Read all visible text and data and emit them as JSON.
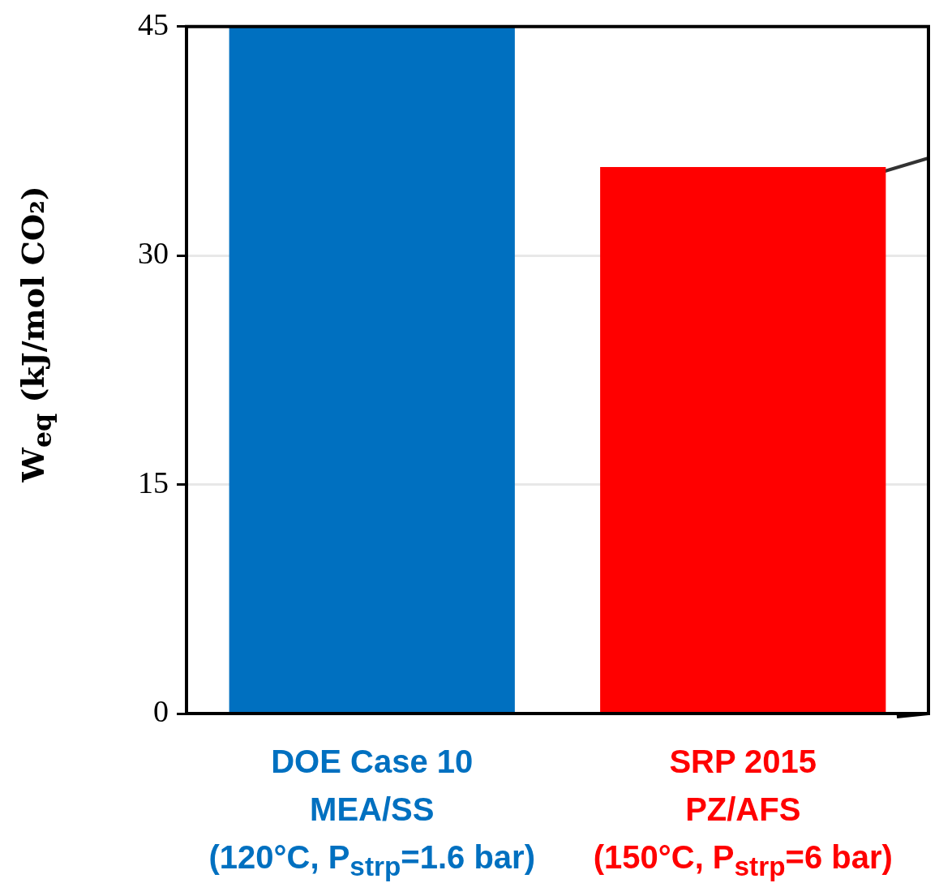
{
  "chart_data": {
    "type": "bar",
    "ylabel": "W$_{eq}$ (kJ/mol CO₂)",
    "categories": [
      "DOE Case 10\nMEA/SS\n(120°C, P$_{strp}$=1.6 bar)",
      "SRP 2015\nPZ/AFS\n(150°C, P$_{strp}$=6 bar)"
    ],
    "values": [
      45,
      35.8
    ],
    "colors": [
      "#0070c0",
      "#ff0000"
    ],
    "ylim": [
      0,
      45
    ],
    "yticks": [
      0,
      15,
      30,
      45
    ],
    "grid": "y",
    "legend": false
  }
}
